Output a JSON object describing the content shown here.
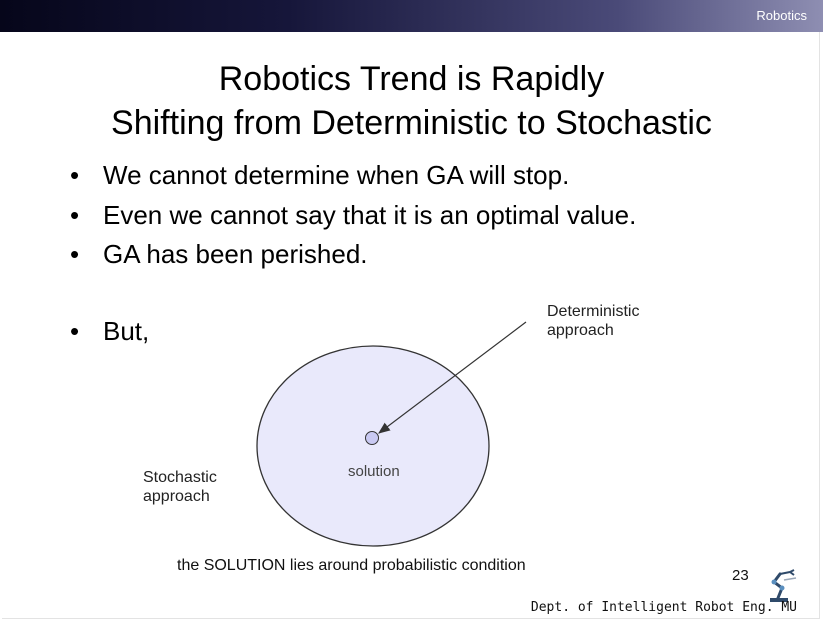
{
  "header": {
    "section_tag": "Robotics"
  },
  "slide": {
    "title_line1": "Robotics Trend is Rapidly",
    "title_line2": "Shifting from Deterministic to Stochastic",
    "bullet_symbol": "•",
    "bullets": [
      "We cannot determine when GA will stop.",
      "Even we cannot say that it is an optimal value.",
      "GA has been perished.",
      "But,"
    ]
  },
  "diagram": {
    "deterministic_label_line1": "Deterministic",
    "deterministic_label_line2": "approach",
    "stochastic_label_line1": "Stochastic",
    "stochastic_label_line2": "approach",
    "solution_label": "solution",
    "colors": {
      "ellipse_fill": "#e9e9fb",
      "point_fill": "#c9c9f2",
      "stroke": "#333333"
    }
  },
  "footer": {
    "caption": "the SOLUTION lies around probabilistic condition",
    "page_number": "23",
    "department": "Dept. of Intelligent Robot Eng. MU",
    "logo_icon": "robot-arm-icon"
  }
}
